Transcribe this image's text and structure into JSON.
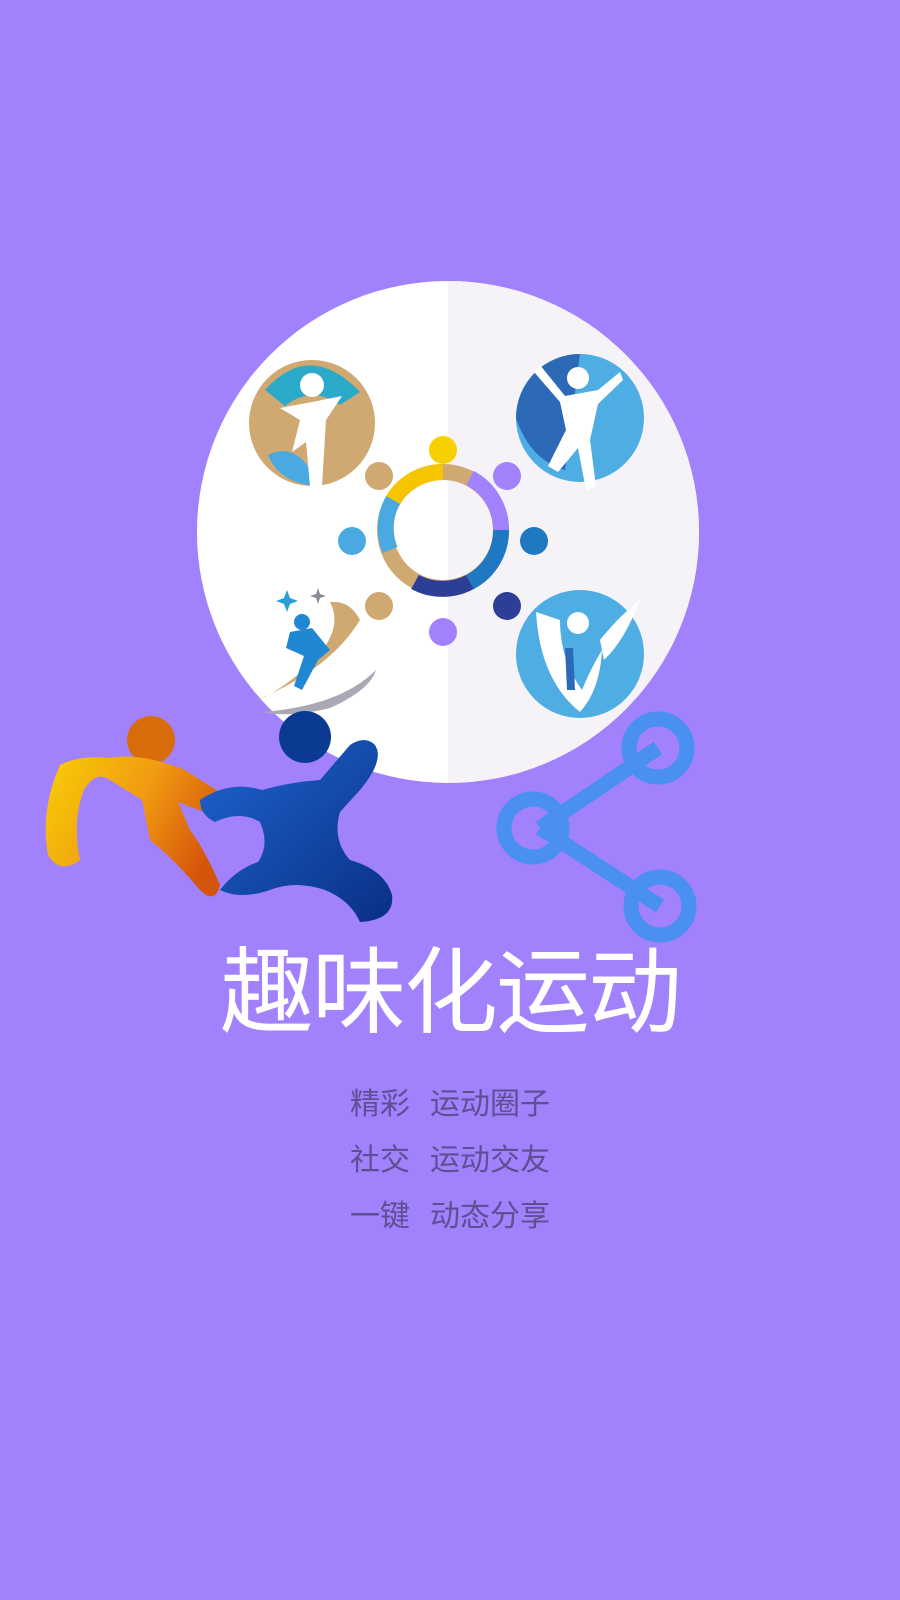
{
  "theme": {
    "background": "#a281fd",
    "title_color": "#ffffff",
    "feature_color": "#5e4f95"
  },
  "splash": {
    "illustration": {
      "icons": [
        "sports-community-circle-icon",
        "wing-runner-icon",
        "jumping-person-icon",
        "people-ring-icon",
        "leaf-person-icon",
        "swoosh-athlete-icon",
        "running-duo-icon",
        "share-icon"
      ]
    },
    "title": "趣味化运动",
    "features": [
      {
        "key": "精彩",
        "value": "运动圈子"
      },
      {
        "key": "社交",
        "value": "运动交友"
      },
      {
        "key": "一键",
        "value": "动态分享"
      }
    ]
  }
}
